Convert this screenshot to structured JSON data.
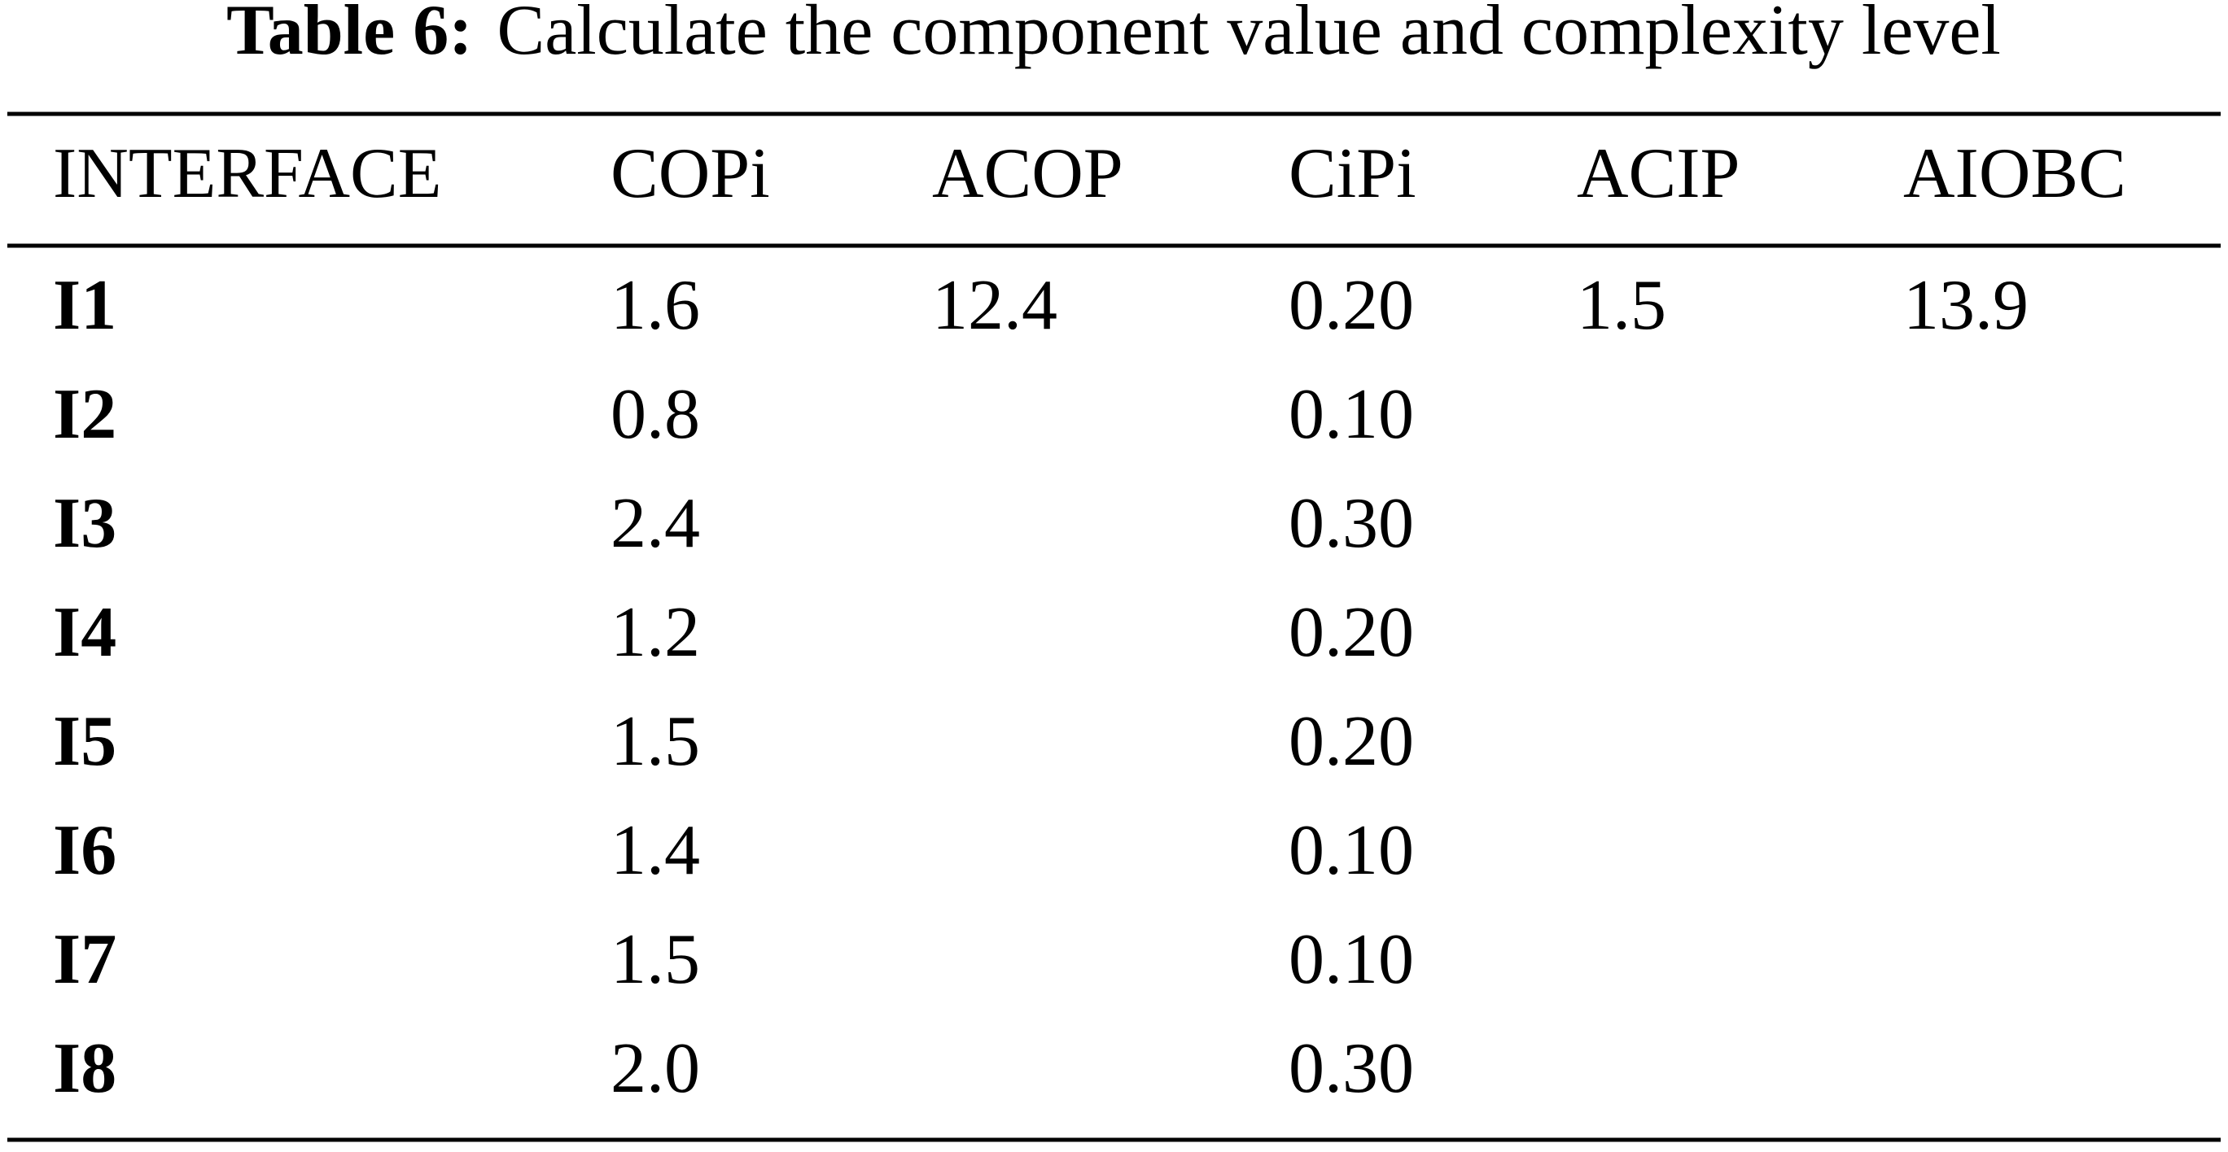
{
  "caption": {
    "label": "Table 6:",
    "text": "Calculate the component value and complexity level"
  },
  "table": {
    "header": [
      "INTERFACE",
      "COPi",
      "ACOP",
      "CiPi",
      "ACIP",
      "AIOBC"
    ],
    "rows": [
      [
        "I1",
        "1.6",
        "12.4",
        "0.20",
        "1.5",
        "13.9"
      ],
      [
        "I2",
        "0.8",
        null,
        "0.10",
        null,
        null
      ],
      [
        "I3",
        "2.4",
        null,
        "0.30",
        null,
        null
      ],
      [
        "I4",
        "1.2",
        null,
        "0.20",
        null,
        null
      ],
      [
        "I5",
        "1.5",
        null,
        "0.20",
        null,
        null
      ],
      [
        "I6",
        "1.4",
        null,
        "0.10",
        null,
        null
      ],
      [
        "I7",
        "1.5",
        null,
        "0.10",
        null,
        null
      ],
      [
        "I8",
        "2.0",
        null,
        "0.30",
        null,
        null
      ]
    ]
  }
}
